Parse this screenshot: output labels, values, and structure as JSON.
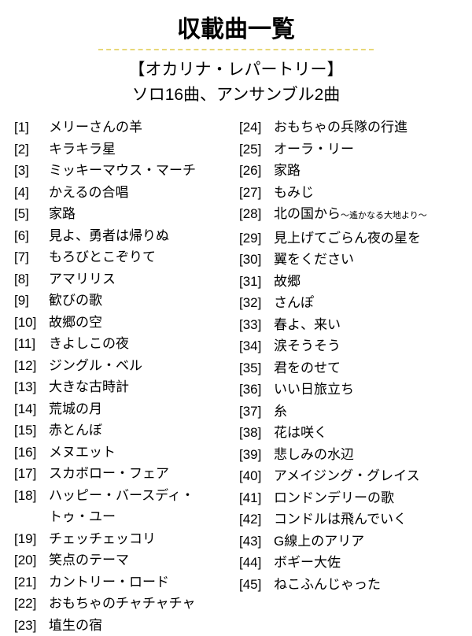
{
  "title": "収載曲一覧",
  "subtitle1": "【オカリナ・レパートリー】",
  "subtitle2": "ソロ16曲、アンサンブル2曲",
  "colors": {
    "background": "#ffffff",
    "text": "#000000",
    "underline": "#e8d878"
  },
  "typography": {
    "title_fontsize": 30,
    "title_weight": 900,
    "subtitle_fontsize": 21,
    "body_fontsize": 17,
    "small_fontsize": 11,
    "line_height": 27.5
  },
  "left_column": [
    {
      "num": "[1]",
      "title": "メリーさんの羊"
    },
    {
      "num": "[2]",
      "title": "キラキラ星"
    },
    {
      "num": "[3]",
      "title": "ミッキーマウス・マーチ"
    },
    {
      "num": "[4]",
      "title": "かえるの合唱"
    },
    {
      "num": "[5]",
      "title": "家路"
    },
    {
      "num": "[6]",
      "title": "見よ、勇者は帰りぬ"
    },
    {
      "num": "[7]",
      "title": "もろびとこぞりて"
    },
    {
      "num": "[8]",
      "title": "アマリリス"
    },
    {
      "num": "[9]",
      "title": "歓びの歌"
    },
    {
      "num": "[10]",
      "title": "故郷の空"
    },
    {
      "num": "[11]",
      "title": "きよしこの夜"
    },
    {
      "num": "[12]",
      "title": "ジングル・ベル"
    },
    {
      "num": "[13]",
      "title": "大きな古時計"
    },
    {
      "num": "[14]",
      "title": "荒城の月"
    },
    {
      "num": "[15]",
      "title": "赤とんぼ"
    },
    {
      "num": "[16]",
      "title": "メヌエット"
    },
    {
      "num": "[17]",
      "title": "スカボロー・フェア"
    },
    {
      "num": "[18]",
      "title": "ハッピー・バースディ・"
    },
    {
      "num": "",
      "title": "トゥ・ユー"
    },
    {
      "num": "[19]",
      "title": "チェッチェッコリ"
    },
    {
      "num": "[20]",
      "title": "笑点のテーマ"
    },
    {
      "num": "[21]",
      "title": "カントリー・ロード"
    },
    {
      "num": "[22]",
      "title": "おもちゃのチャチャチャ"
    },
    {
      "num": "[23]",
      "title": "埴生の宿"
    }
  ],
  "right_column": [
    {
      "num": "[24]",
      "title": "おもちゃの兵隊の行進"
    },
    {
      "num": "[25]",
      "title": "オーラ・リー"
    },
    {
      "num": "[26]",
      "title": "家路"
    },
    {
      "num": "[27]",
      "title": "もみじ"
    },
    {
      "num": "[28]",
      "title": "北の国から",
      "sub": "～遙かなる大地より～"
    },
    {
      "num": "[29]",
      "title": "見上げてごらん夜の星を"
    },
    {
      "num": "[30]",
      "title": "翼をください"
    },
    {
      "num": "[31]",
      "title": "故郷"
    },
    {
      "num": "[32]",
      "title": "さんぽ"
    },
    {
      "num": "[33]",
      "title": "春よ、来い"
    },
    {
      "num": "[34]",
      "title": "涙そうそう"
    },
    {
      "num": "[35]",
      "title": "君をのせて"
    },
    {
      "num": "[36]",
      "title": "いい日旅立ち"
    },
    {
      "num": "[37]",
      "title": "糸"
    },
    {
      "num": "[38]",
      "title": "花は咲く"
    },
    {
      "num": "[39]",
      "title": "悲しみの水辺"
    },
    {
      "num": "[40]",
      "title": "アメイジング・グレイス"
    },
    {
      "num": "[41]",
      "title": "ロンドンデリーの歌"
    },
    {
      "num": "[42]",
      "title": "コンドルは飛んでいく"
    },
    {
      "num": "[43]",
      "title": "G線上のアリア"
    },
    {
      "num": "[44]",
      "title": "ボギー大佐"
    },
    {
      "num": "[45]",
      "title": "ねこふんじゃった"
    }
  ]
}
